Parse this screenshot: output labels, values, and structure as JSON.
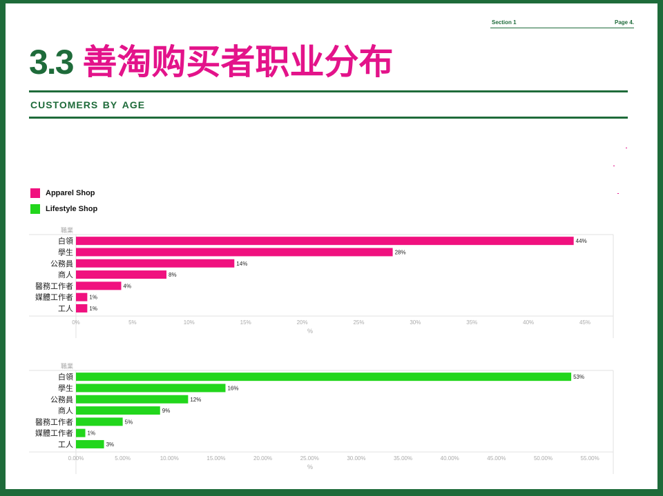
{
  "header": {
    "section": "Section 1",
    "page": "Page 4."
  },
  "title": {
    "number": "3.3",
    "text": "善淘购买者职业分布"
  },
  "subtitle": "CUSTOMERS BY AGE",
  "legend": [
    {
      "label": "Apparel Shop",
      "color": "#f0117f"
    },
    {
      "label": "Lifestyle Shop",
      "color": "#22d61c"
    }
  ],
  "chart_data": [
    {
      "type": "bar",
      "orientation": "horizontal",
      "series_name": "Apparel Shop",
      "color": "#f0117f",
      "ylabel": "職業",
      "xlabel": "%",
      "categories": [
        "白領",
        "學生",
        "公務員",
        "商人",
        "醫務工作者",
        "媒體工作者",
        "工人"
      ],
      "values": [
        44,
        28,
        14,
        8,
        4,
        1,
        1
      ],
      "value_labels": [
        "44%",
        "28%",
        "14%",
        "8%",
        "4%",
        "1%",
        "1%"
      ],
      "xticks": [
        "0%",
        "5%",
        "10%",
        "15%",
        "20%",
        "25%",
        "30%",
        "35%",
        "40%",
        "45%"
      ],
      "xlim": [
        0,
        47.5
      ],
      "grid": false
    },
    {
      "type": "bar",
      "orientation": "horizontal",
      "series_name": "Lifestyle Shop",
      "color": "#22d61c",
      "ylabel": "職業",
      "xlabel": "%",
      "categories": [
        "白領",
        "學生",
        "公務員",
        "商人",
        "醫務工作者",
        "媒體工作者",
        "工人"
      ],
      "values": [
        53,
        16,
        12,
        9,
        5,
        1,
        3
      ],
      "value_labels": [
        "53%",
        "16%",
        "12%",
        "9%",
        "5%",
        "1%",
        "3%"
      ],
      "xticks": [
        "0.00%",
        "5.00%",
        "10.00%",
        "15.00%",
        "20.00%",
        "25.00%",
        "30.00%",
        "35.00%",
        "40.00%",
        "45.00%",
        "50.00%",
        "55.00%"
      ],
      "xlim": [
        0,
        57.5
      ],
      "grid": false
    }
  ]
}
